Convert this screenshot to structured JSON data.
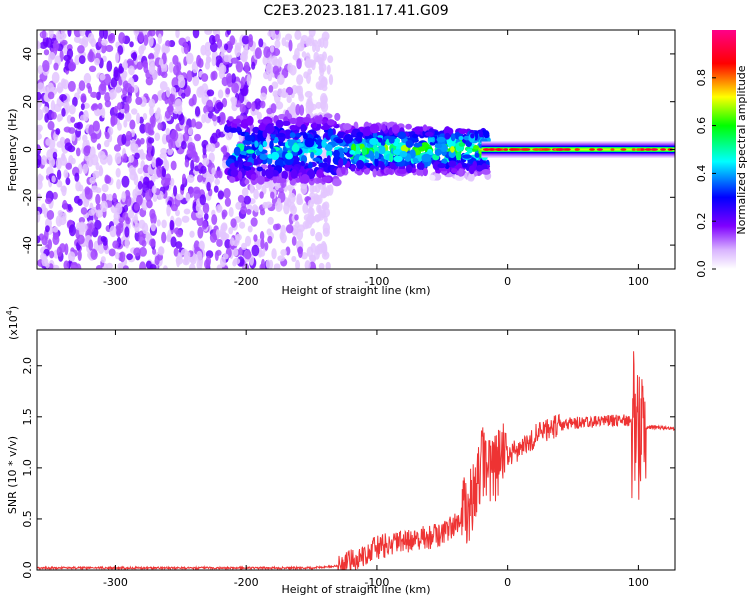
{
  "chart_data": [
    {
      "type": "heatmap",
      "title": "C2E3.2023.181.17.41.G09",
      "xlabel": "Height of straight line (km)",
      "ylabel": "Frequency (Hz)",
      "xlim": [
        -360,
        128
      ],
      "ylim": [
        -50,
        50
      ],
      "xticks": [
        -300,
        -200,
        -100,
        0,
        100
      ],
      "yticks": [
        -40,
        -20,
        0,
        20,
        40
      ],
      "colorbar": {
        "label": "Normalized spectral amplitude",
        "range": [
          0.0,
          1.0
        ],
        "ticks": [
          0.0,
          0.2,
          0.4,
          0.6,
          0.8
        ],
        "colormap": [
          "#ffffff",
          "#d9b3ff",
          "#7f00ff",
          "#0000ff",
          "#00ffff",
          "#00ff00",
          "#ffff00",
          "#ff0000",
          "#ff00ff"
        ]
      },
      "description_of_field": {
        "noise_region_x": [
          -360,
          -150
        ],
        "noise_amplitude": 0.15,
        "transition_region_x": [
          -150,
          -20
        ],
        "tone_frequency_hz": 0,
        "tone_region_x": [
          -20,
          128
        ],
        "tone_peak_amplitude": 0.9
      }
    },
    {
      "type": "line",
      "xlabel": "Height of straight line (km)",
      "ylabel": "SNR (10 * v/v)",
      "y_scale_label": "(x10",
      "y_scale_exponent": "4",
      "y_scale_suffix": ")",
      "xlim": [
        -360,
        128
      ],
      "ylim": [
        0,
        2.35
      ],
      "xticks": [
        -300,
        -200,
        -100,
        0,
        100
      ],
      "yticks": [
        0.0,
        0.5,
        1.0,
        1.5,
        2.0
      ],
      "series": [
        {
          "color": "#ee3333",
          "x": [
            -360,
            -300,
            -250,
            -200,
            -150,
            -130,
            -120,
            -110,
            -100,
            -90,
            -80,
            -70,
            -60,
            -50,
            -40,
            -35,
            -30,
            -25,
            -22,
            -20,
            -15,
            -10,
            -5,
            0,
            10,
            20,
            30,
            40,
            50,
            60,
            70,
            80,
            90,
            95,
            98,
            100,
            102,
            104,
            106,
            110,
            120,
            128
          ],
          "y": [
            0.02,
            0.02,
            0.02,
            0.02,
            0.02,
            0.04,
            0.08,
            0.15,
            0.22,
            0.25,
            0.27,
            0.3,
            0.32,
            0.35,
            0.45,
            0.55,
            0.6,
            0.75,
            0.9,
            1.1,
            0.95,
            1.0,
            1.1,
            1.1,
            1.2,
            1.3,
            1.38,
            1.42,
            1.44,
            1.45,
            1.45,
            1.46,
            1.47,
            1.45,
            1.4,
            1.42,
            1.41,
            1.42,
            1.4,
            1.4,
            1.39,
            1.38
          ]
        }
      ]
    }
  ]
}
